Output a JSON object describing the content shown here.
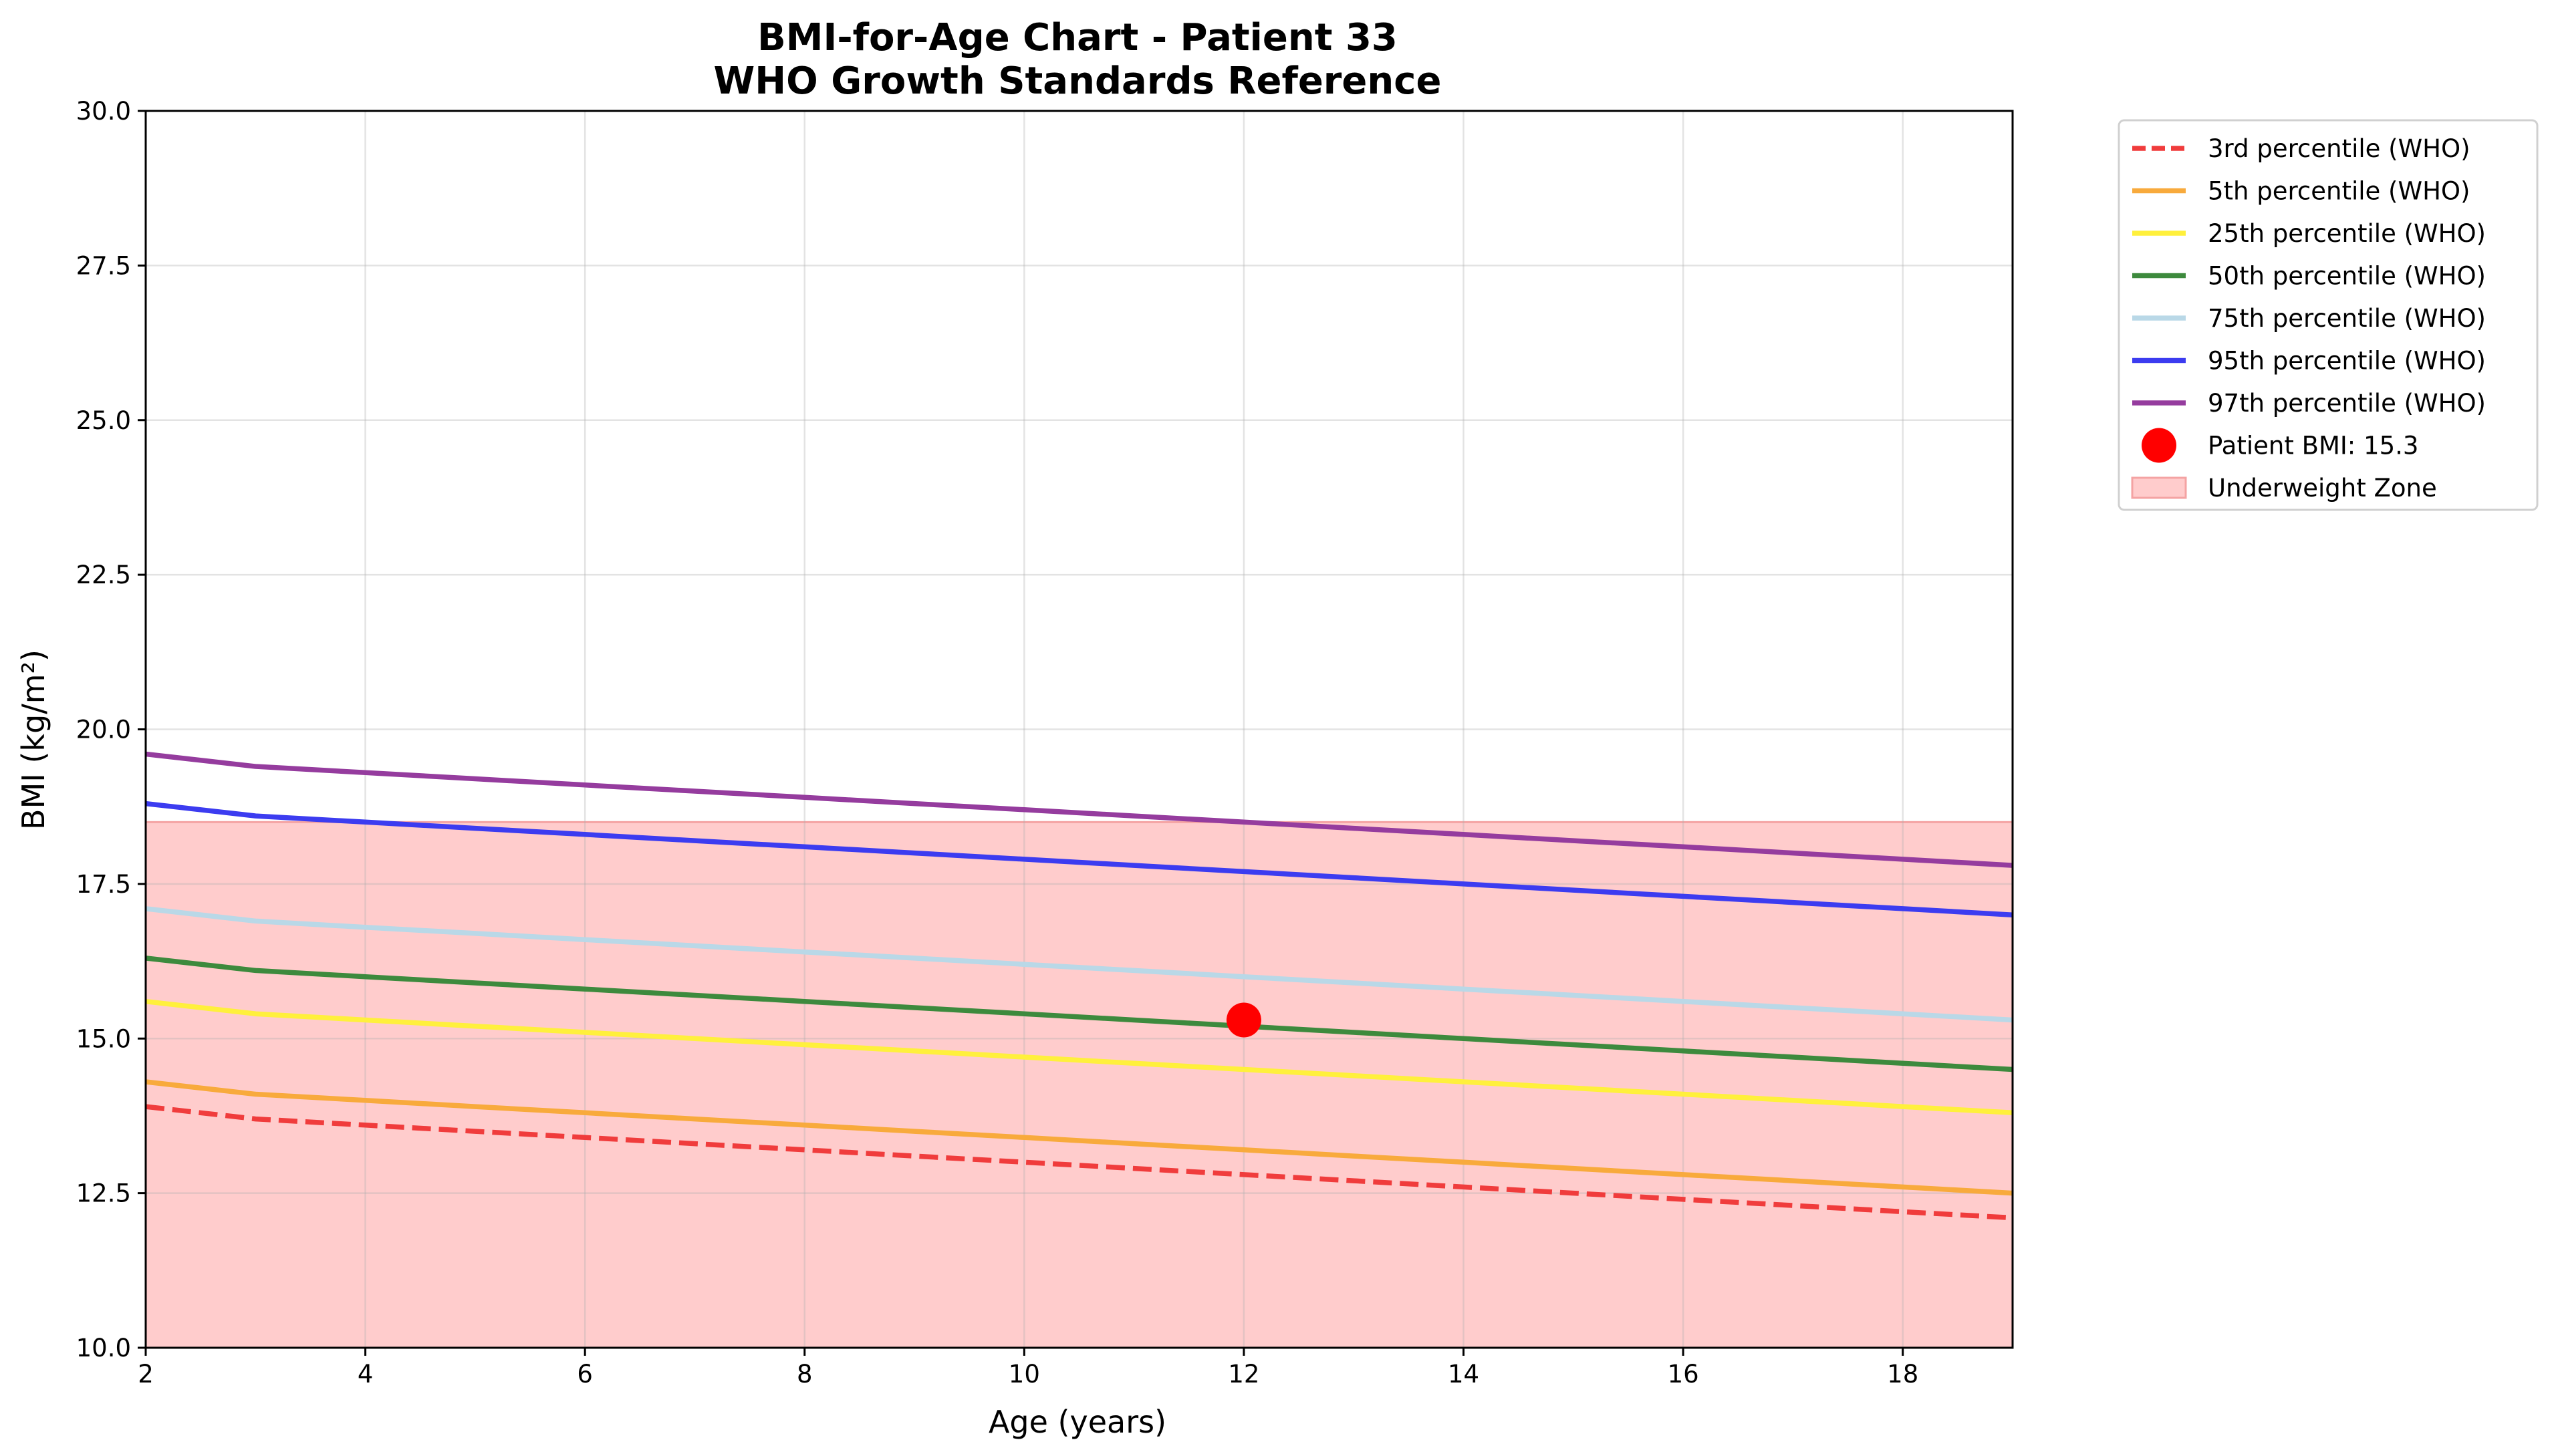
{
  "chart_data": {
    "type": "line",
    "title": [
      "BMI-for-Age Chart - Patient 33",
      "WHO Growth Standards Reference"
    ],
    "xlabel": "Age (years)",
    "ylabel": "BMI (kg/m²)",
    "xlim": [
      2,
      19
    ],
    "ylim": [
      10,
      30
    ],
    "xticks": [
      2,
      4,
      6,
      8,
      10,
      12,
      14,
      16,
      18
    ],
    "xtick_labels": [
      "2",
      "4",
      "6",
      "8",
      "10",
      "12",
      "14",
      "16",
      "18"
    ],
    "yticks": [
      10,
      12.5,
      15,
      17.5,
      20,
      22.5,
      25,
      27.5,
      30
    ],
    "ytick_labels": [
      "10.0",
      "12.5",
      "15.0",
      "17.5",
      "20.0",
      "22.5",
      "25.0",
      "27.5",
      "30.0"
    ],
    "grid": true,
    "legend_position": "outside-top-right",
    "x": [
      2,
      3,
      4,
      5,
      6,
      7,
      8,
      9,
      10,
      11,
      12,
      13,
      14,
      15,
      16,
      17,
      18,
      19
    ],
    "series": [
      {
        "name": "3rd percentile (WHO)",
        "color": "#f03c3c",
        "dashed": true,
        "values": [
          13.9,
          13.7,
          13.6,
          13.5,
          13.4,
          13.3,
          13.2,
          13.1,
          13.0,
          12.9,
          12.8,
          12.7,
          12.6,
          12.5,
          12.4,
          12.3,
          12.2,
          12.1
        ]
      },
      {
        "name": "5th percentile (WHO)",
        "color": "#f8aa3c",
        "dashed": false,
        "values": [
          14.3,
          14.1,
          14.0,
          13.9,
          13.8,
          13.7,
          13.6,
          13.5,
          13.4,
          13.3,
          13.2,
          13.1,
          13.0,
          12.9,
          12.8,
          12.7,
          12.6,
          12.5
        ]
      },
      {
        "name": "25th percentile (WHO)",
        "color": "#fff03c",
        "dashed": false,
        "values": [
          15.6,
          15.4,
          15.3,
          15.2,
          15.1,
          15.0,
          14.9,
          14.8,
          14.7,
          14.6,
          14.5,
          14.4,
          14.3,
          14.2,
          14.1,
          14.0,
          13.9,
          13.8
        ]
      },
      {
        "name": "50th percentile (WHO)",
        "color": "#3d8a3d",
        "dashed": false,
        "values": [
          16.3,
          16.1,
          16.0,
          15.9,
          15.8,
          15.7,
          15.6,
          15.5,
          15.4,
          15.3,
          15.2,
          15.1,
          15.0,
          14.9,
          14.8,
          14.7,
          14.6,
          14.5
        ]
      },
      {
        "name": "75th percentile (WHO)",
        "color": "#b9d8e7",
        "dashed": false,
        "values": [
          17.1,
          16.9,
          16.8,
          16.7,
          16.6,
          16.5,
          16.4,
          16.3,
          16.2,
          16.1,
          16.0,
          15.9,
          15.8,
          15.7,
          15.6,
          15.5,
          15.4,
          15.3
        ]
      },
      {
        "name": "95th percentile (WHO)",
        "color": "#3c3cf0",
        "dashed": false,
        "values": [
          18.8,
          18.6,
          18.5,
          18.4,
          18.3,
          18.2,
          18.1,
          18.0,
          17.9,
          17.8,
          17.7,
          17.6,
          17.5,
          17.4,
          17.3,
          17.2,
          17.1,
          17.0
        ]
      },
      {
        "name": "97th percentile (WHO)",
        "color": "#953c9e",
        "dashed": false,
        "values": [
          19.6,
          19.4,
          19.3,
          19.2,
          19.1,
          19.0,
          18.9,
          18.8,
          18.7,
          18.6,
          18.5,
          18.4,
          18.3,
          18.2,
          18.1,
          18.0,
          17.9,
          17.8
        ]
      }
    ],
    "patient_point": {
      "name": "Patient BMI: 15.3",
      "x": 12,
      "y": 15.3,
      "color": "#ff0000"
    },
    "zone": {
      "name": "Underweight Zone",
      "y_from": 10,
      "y_to": 18.5,
      "color": "#ffcccc",
      "edge_color": "#f4a3a3"
    }
  }
}
